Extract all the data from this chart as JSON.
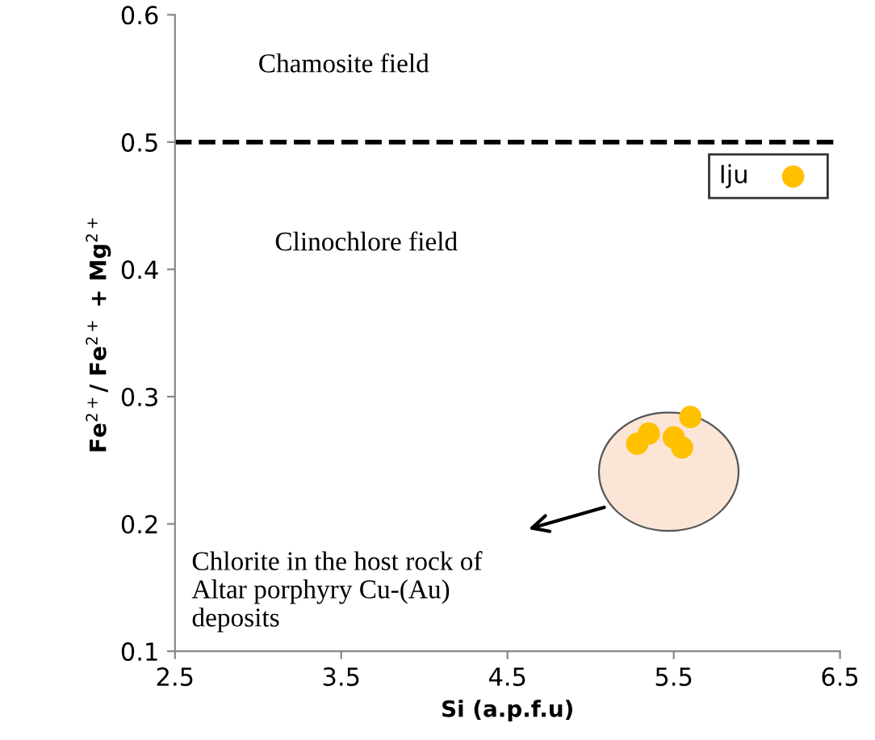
{
  "chart_data": {
    "type": "scatter",
    "xlabel": "Si (a.p.f.u)",
    "ylabel": "Fe$^{2+}$/ Fe$^{2+}$ + Mg$^{2+}$",
    "series": [
      {
        "name": "Iju",
        "color": "#ffc000",
        "x": [
          5.28,
          5.35,
          5.48,
          5.55,
          5.6,
          5.5
        ],
        "values": [
          0.263,
          0.271,
          null,
          0.26,
          0.284,
          0.268
        ]
      }
    ],
    "xlim": [
      2.5,
      6.5
    ],
    "xticks": [
      2.5,
      3.5,
      4.5,
      5.5,
      6.5
    ],
    "ylim": [
      0.1,
      0.6
    ],
    "yticks": [
      0.1,
      0.2,
      0.3,
      0.4,
      0.5,
      0.6
    ],
    "ref_lines": [
      {
        "axis": "y",
        "value": 0.5,
        "line_style": "dashed",
        "color": "#000000"
      }
    ],
    "annotations": [
      "Chamosite field",
      "Clinochlore field",
      "Chlorite in the host rock of\nAltar porphyry Cu-(Au)\ndeposits"
    ],
    "grid": false,
    "legend": "top right",
    "marker": "circle"
  }
}
